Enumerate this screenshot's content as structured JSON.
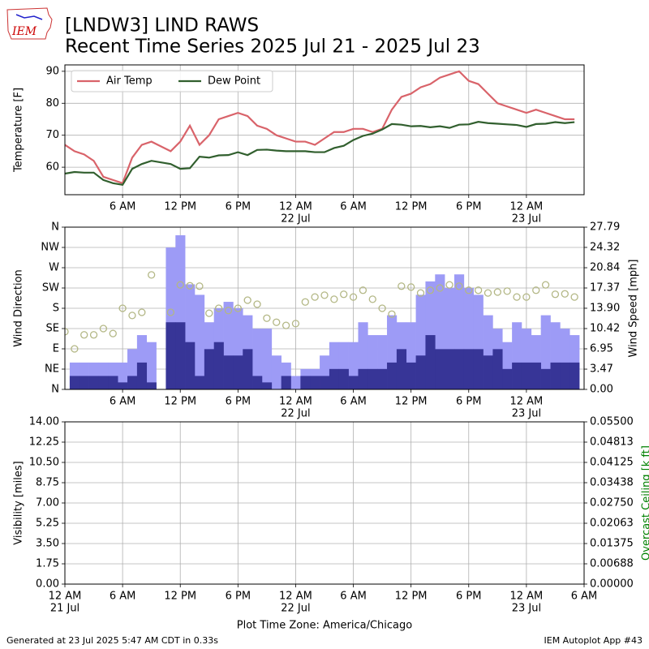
{
  "header": {
    "title": "[LNDW3] LIND RAWS",
    "subtitle": "Recent Time Series 2025 Jul 21 - 2025 Jul 23",
    "logo_text": "IEM"
  },
  "footer": {
    "left": "Generated at 23 Jul 2025 5:47 AM CDT in 0.33s",
    "right": "IEM Autoplot App #43"
  },
  "chart_data": [
    {
      "type": "line",
      "ylabel": "Temperature [F]",
      "grid": true,
      "legend": "upper-left",
      "xlim": [
        0,
        54
      ],
      "ylim": [
        51.4,
        92.0
      ],
      "yticks": [
        60,
        70,
        80,
        90
      ],
      "xticks": [
        {
          "value": 6,
          "label": "6 AM"
        },
        {
          "value": 12,
          "label": "12 PM"
        },
        {
          "value": 18,
          "label": "6 PM"
        },
        {
          "value": 24,
          "label": "12 AM",
          "sub": "22 Jul"
        },
        {
          "value": 30,
          "label": "6 AM"
        },
        {
          "value": 36,
          "label": "12 PM"
        },
        {
          "value": 42,
          "label": "6 PM"
        },
        {
          "value": 48,
          "label": "12 AM",
          "sub": "23 Jul"
        }
      ],
      "x": [
        0,
        1,
        2,
        3,
        4,
        5,
        6,
        7,
        8,
        9,
        10,
        11,
        12,
        13,
        14,
        15,
        16,
        17,
        18,
        19,
        20,
        21,
        22,
        23,
        24,
        25,
        26,
        27,
        28,
        29,
        30,
        31,
        32,
        33,
        34,
        35,
        36,
        37,
        38,
        39,
        40,
        41,
        42,
        43,
        44,
        45,
        46,
        47,
        48,
        49,
        50,
        51,
        52,
        53
      ],
      "series": [
        {
          "name": "Air Temp",
          "color": "#d9636a",
          "values": [
            67,
            65,
            64,
            62,
            57,
            56,
            55,
            63,
            67,
            68,
            66.5,
            65,
            68,
            73,
            67,
            70,
            75,
            76,
            77,
            76,
            73,
            72,
            70,
            69,
            68,
            68,
            67,
            69,
            71,
            71,
            72,
            72,
            71,
            72,
            78,
            82,
            83,
            85,
            86,
            88,
            89,
            90,
            87,
            86,
            83,
            80,
            79,
            78,
            77,
            78,
            77,
            76,
            75,
            75
          ]
        },
        {
          "name": "Dew Point",
          "color": "#315f2e",
          "values": [
            58,
            58.5,
            58.3,
            58.3,
            56,
            55,
            54.5,
            59.5,
            61,
            62,
            61.5,
            61,
            59.5,
            59.7,
            63.3,
            63,
            63.7,
            63.8,
            64.7,
            63.8,
            65.4,
            65.5,
            65.2,
            65,
            65,
            65,
            64.7,
            64.7,
            66,
            66.7,
            68.5,
            69.8,
            70.5,
            71.8,
            73.5,
            73.3,
            72.8,
            72.9,
            72.5,
            72.8,
            72.3,
            73.3,
            73.4,
            74.2,
            73.8,
            73.6,
            73.4,
            73.2,
            72.6,
            73.5,
            73.6,
            74.1,
            73.8,
            74.1
          ]
        }
      ]
    },
    {
      "type": "bar",
      "ylabel": "Wind Direction",
      "y2label": "Wind Speed [mph]",
      "grid": true,
      "xlim": [
        0,
        54
      ],
      "ylim": [
        0,
        360
      ],
      "y2lim": [
        0,
        27.79
      ],
      "yticks": [
        {
          "value": 0,
          "label": "N"
        },
        {
          "value": 45,
          "label": "NE"
        },
        {
          "value": 90,
          "label": "E"
        },
        {
          "value": 135,
          "label": "SE"
        },
        {
          "value": 180,
          "label": "S"
        },
        {
          "value": 225,
          "label": "SW"
        },
        {
          "value": 270,
          "label": "W"
        },
        {
          "value": 315,
          "label": "NW"
        },
        {
          "value": 360,
          "label": "N"
        }
      ],
      "y2ticks": [
        {
          "value": 0,
          "label": "0.00"
        },
        3.47,
        6.95,
        10.42,
        {
          "value": 13.9,
          "label": "13.90"
        },
        17.37,
        20.84,
        24.32,
        27.79
      ],
      "xticks": [
        {
          "value": 6,
          "label": "6 AM"
        },
        {
          "value": 12,
          "label": "12 PM"
        },
        {
          "value": 18,
          "label": "6 PM"
        },
        {
          "value": 24,
          "label": "12 AM",
          "sub": "22 Jul"
        },
        {
          "value": 30,
          "label": "6 AM"
        },
        {
          "value": 36,
          "label": "12 PM"
        },
        {
          "value": 42,
          "label": "6 PM"
        },
        {
          "value": 48,
          "label": "12 AM",
          "sub": "23 Jul"
        }
      ],
      "series": [
        {
          "kind": "bar",
          "axis": "y2",
          "color": "#9d9bf6",
          "x": [
            1,
            2,
            3,
            4,
            5,
            6,
            7,
            8,
            9,
            10,
            11,
            12,
            13,
            14,
            15,
            16,
            17,
            18,
            19,
            20,
            21,
            22,
            23,
            24,
            25,
            26,
            27,
            28,
            29,
            30,
            31,
            32,
            33,
            34,
            35,
            36,
            37,
            38,
            39,
            40,
            41,
            42,
            43,
            44,
            45,
            46,
            47,
            48,
            49,
            50,
            51,
            52,
            53
          ],
          "values": [
            4.6,
            4.6,
            4.6,
            4.6,
            4.6,
            4.6,
            6.9,
            9.3,
            8.1,
            null,
            24.3,
            26.4,
            18.0,
            16.2,
            11.5,
            13.9,
            15.0,
            13.9,
            12.7,
            10.4,
            10.4,
            5.8,
            4.6,
            2.3,
            3.5,
            3.5,
            5.8,
            8.1,
            8.1,
            8.1,
            11.5,
            9.3,
            9.3,
            12.7,
            11.5,
            11.5,
            16.2,
            18.5,
            19.7,
            17.4,
            19.7,
            17.4,
            16.2,
            12.7,
            10.4,
            8.1,
            11.5,
            10.4,
            9.3,
            12.7,
            11.5,
            10.4,
            9.3
          ]
        },
        {
          "kind": "bar",
          "axis": "y2",
          "color": "#373597",
          "x": [
            1,
            2,
            3,
            4,
            5,
            6,
            7,
            8,
            9,
            10,
            11,
            12,
            13,
            14,
            15,
            16,
            17,
            18,
            19,
            20,
            21,
            22,
            23,
            24,
            25,
            26,
            27,
            28,
            29,
            30,
            31,
            32,
            33,
            34,
            35,
            36,
            37,
            38,
            39,
            40,
            41,
            42,
            43,
            44,
            45,
            46,
            47,
            48,
            49,
            50,
            51,
            52,
            53
          ],
          "values": [
            2.3,
            2.3,
            2.3,
            2.3,
            2.3,
            1.2,
            2.3,
            4.6,
            1.2,
            null,
            11.5,
            11.5,
            8.1,
            2.3,
            6.9,
            8.1,
            5.8,
            5.8,
            6.9,
            2.3,
            1.2,
            0,
            2.3,
            0,
            2.3,
            2.3,
            2.3,
            3.5,
            3.5,
            2.3,
            3.5,
            3.5,
            3.5,
            4.6,
            6.9,
            4.6,
            5.8,
            9.3,
            6.9,
            6.9,
            6.9,
            6.9,
            6.9,
            5.8,
            6.9,
            3.5,
            4.6,
            4.6,
            4.6,
            3.5,
            4.6,
            4.6,
            4.6
          ]
        },
        {
          "kind": "circle",
          "axis": "y",
          "color": "#b3b785",
          "x": [
            0,
            1,
            2,
            3,
            4,
            5,
            6,
            7,
            8,
            9,
            10,
            11,
            12,
            13,
            14,
            15,
            16,
            17,
            18,
            19,
            20,
            21,
            22,
            23,
            24,
            25,
            26,
            27,
            28,
            29,
            30,
            31,
            32,
            33,
            34,
            35,
            36,
            37,
            38,
            39,
            40,
            41,
            42,
            43,
            44,
            45,
            46,
            47,
            48,
            49,
            50,
            51,
            52,
            53
          ],
          "values": [
            128,
            90,
            121,
            121,
            135,
            124,
            180,
            164,
            171,
            254,
            null,
            171,
            232,
            230,
            229,
            169,
            180,
            175,
            180,
            198,
            189,
            158,
            149,
            142,
            146,
            194,
            205,
            209,
            200,
            211,
            205,
            220,
            200,
            180,
            167,
            229,
            227,
            214,
            220,
            225,
            232,
            229,
            220,
            220,
            214,
            216,
            218,
            205,
            205,
            220,
            232,
            211,
            212,
            205
          ]
        }
      ]
    },
    {
      "type": "line",
      "ylabel": "Visibility [miles]",
      "y2label": "Overcast Ceiling [k ft]",
      "y2label_color": "#008000",
      "xlabel": "Plot Time Zone: America/Chicago",
      "grid": true,
      "xlim": [
        0,
        54
      ],
      "ylim": [
        0,
        14
      ],
      "y2lim": [
        0,
        0.055
      ],
      "yticks": [
        {
          "value": 0,
          "label": "0.00"
        },
        1.75,
        {
          "value": 3.5,
          "label": "3.50"
        },
        5.25,
        {
          "value": 7,
          "label": "7.00"
        },
        8.75,
        {
          "value": 10.5,
          "label": "10.50"
        },
        12.25,
        {
          "value": 14,
          "label": "14.00"
        }
      ],
      "y2ticks": [
        {
          "value": 0,
          "label": "0.00000"
        },
        {
          "value": 0.006875,
          "label": "0.00688"
        },
        {
          "value": 0.01375,
          "label": "0.01375"
        },
        {
          "value": 0.020625,
          "label": "0.02063"
        },
        {
          "value": 0.0275,
          "label": "0.02750"
        },
        {
          "value": 0.034375,
          "label": "0.03438"
        },
        {
          "value": 0.04125,
          "label": "0.04125"
        },
        {
          "value": 0.048125,
          "label": "0.04813"
        },
        {
          "value": 0.055,
          "label": "0.05500"
        }
      ],
      "xticks": [
        {
          "value": 0,
          "label": "12 AM",
          "sub": "21 Jul"
        },
        {
          "value": 6,
          "label": "6 AM"
        },
        {
          "value": 12,
          "label": "12 PM"
        },
        {
          "value": 18,
          "label": "6 PM"
        },
        {
          "value": 24,
          "label": "12 AM",
          "sub": "22 Jul"
        },
        {
          "value": 30,
          "label": "6 AM"
        },
        {
          "value": 36,
          "label": "12 PM"
        },
        {
          "value": 42,
          "label": "6 PM"
        },
        {
          "value": 48,
          "label": "12 AM",
          "sub": "23 Jul"
        },
        {
          "value": 54,
          "label": "6 AM"
        }
      ]
    }
  ]
}
